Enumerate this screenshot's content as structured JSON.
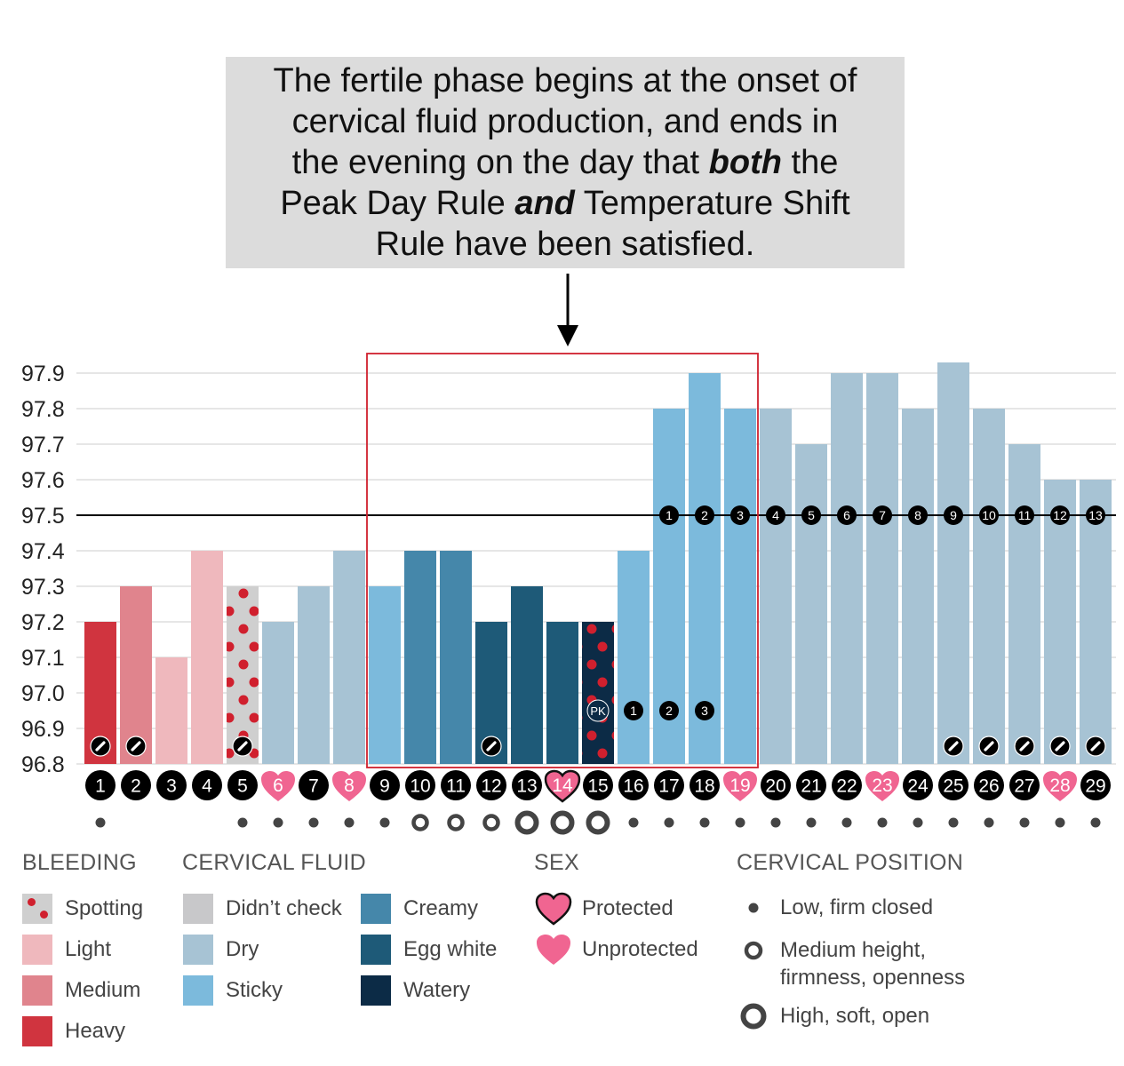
{
  "callout": {
    "line1": "The fertile phase begins at the onset of",
    "line2": "cervical fluid production, and ends in",
    "line3_pre": "the evening on the day that ",
    "line3_em": "both",
    "line3_post": " the",
    "line4_pre": "Peak Day Rule ",
    "line4_em": "and",
    "line4_post": " Temperature Shift",
    "line5": "Rule have been satisfied."
  },
  "colors": {
    "heavy": "#d0343f",
    "medium": "#e0848d",
    "light": "#efb8bd",
    "spotting_bg": "#cfcfcf",
    "spot_dot": "#d0202e",
    "didnt_check": "#c8c8ca",
    "dry": "#a7c3d4",
    "sticky": "#7cbadc",
    "creamy": "#4587aa",
    "eggwhite": "#1e5a78",
    "watery": "#0c2b46",
    "heart": "#f06591",
    "box": "#d0202e",
    "grid": "#dddddd"
  },
  "chart_data": {
    "type": "bar",
    "title": "",
    "xlabel": "",
    "ylabel": "",
    "ylim": [
      96.8,
      97.9
    ],
    "yticks": [
      "97.9",
      "97.8",
      "97.7",
      "97.6",
      "97.5",
      "97.4",
      "97.3",
      "97.2",
      "97.1",
      "97.0",
      "96.9",
      "96.8"
    ],
    "coverline": 97.5,
    "fertile_window_days": [
      9,
      19
    ],
    "days": [
      {
        "day": "1",
        "temp": 97.2,
        "kind": "heavy",
        "sex": "none",
        "cp": "low",
        "edit": true,
        "marker": ""
      },
      {
        "day": "2",
        "temp": 97.3,
        "kind": "medium",
        "sex": "none",
        "cp": "none",
        "edit": true,
        "marker": ""
      },
      {
        "day": "3",
        "temp": 97.1,
        "kind": "light",
        "sex": "none",
        "cp": "none",
        "edit": false,
        "marker": ""
      },
      {
        "day": "4",
        "temp": 97.4,
        "kind": "light",
        "sex": "none",
        "cp": "none",
        "edit": false,
        "marker": ""
      },
      {
        "day": "5",
        "temp": 97.3,
        "kind": "spotting",
        "sex": "none",
        "cp": "low",
        "edit": true,
        "marker": ""
      },
      {
        "day": "6",
        "temp": 97.2,
        "kind": "dry",
        "sex": "unprotected",
        "cp": "low",
        "edit": false,
        "marker": ""
      },
      {
        "day": "7",
        "temp": 97.3,
        "kind": "dry",
        "sex": "none",
        "cp": "low",
        "edit": false,
        "marker": ""
      },
      {
        "day": "8",
        "temp": 97.4,
        "kind": "dry",
        "sex": "unprotected",
        "cp": "low",
        "edit": false,
        "marker": ""
      },
      {
        "day": "9",
        "temp": 97.3,
        "kind": "sticky",
        "sex": "none",
        "cp": "low",
        "edit": false,
        "marker": ""
      },
      {
        "day": "10",
        "temp": 97.4,
        "kind": "creamy",
        "sex": "none",
        "cp": "medium",
        "edit": false,
        "marker": ""
      },
      {
        "day": "11",
        "temp": 97.4,
        "kind": "creamy",
        "sex": "none",
        "cp": "medium",
        "edit": false,
        "marker": ""
      },
      {
        "day": "12",
        "temp": 97.2,
        "kind": "eggwhite",
        "sex": "none",
        "cp": "medium",
        "edit": true,
        "marker": ""
      },
      {
        "day": "13",
        "temp": 97.3,
        "kind": "eggwhite",
        "sex": "none",
        "cp": "high",
        "edit": false,
        "marker": ""
      },
      {
        "day": "14",
        "temp": 97.2,
        "kind": "eggwhite",
        "sex": "protected",
        "cp": "high",
        "edit": false,
        "marker": ""
      },
      {
        "day": "15",
        "temp": 97.2,
        "kind": "watery_spot",
        "sex": "none",
        "cp": "high",
        "edit": false,
        "marker": "PK"
      },
      {
        "day": "16",
        "temp": 97.4,
        "kind": "sticky",
        "sex": "none",
        "cp": "low",
        "edit": false,
        "marker": "1"
      },
      {
        "day": "17",
        "temp": 97.8,
        "kind": "sticky",
        "sex": "none",
        "cp": "low",
        "edit": false,
        "marker": "2",
        "shift": "1"
      },
      {
        "day": "18",
        "temp": 97.9,
        "kind": "sticky",
        "sex": "none",
        "cp": "low",
        "edit": false,
        "marker": "3",
        "shift": "2"
      },
      {
        "day": "19",
        "temp": 97.8,
        "kind": "sticky",
        "sex": "unprotected",
        "cp": "low",
        "edit": false,
        "marker": "",
        "shift": "3"
      },
      {
        "day": "20",
        "temp": 97.8,
        "kind": "dry",
        "sex": "none",
        "cp": "low",
        "edit": false,
        "marker": "",
        "shift": "4"
      },
      {
        "day": "21",
        "temp": 97.7,
        "kind": "dry",
        "sex": "none",
        "cp": "low",
        "edit": false,
        "marker": "",
        "shift": "5"
      },
      {
        "day": "22",
        "temp": 97.9,
        "kind": "dry",
        "sex": "none",
        "cp": "low",
        "edit": false,
        "marker": "",
        "shift": "6"
      },
      {
        "day": "23",
        "temp": 97.9,
        "kind": "dry",
        "sex": "unprotected",
        "cp": "low",
        "edit": false,
        "marker": "",
        "shift": "7"
      },
      {
        "day": "24",
        "temp": 97.8,
        "kind": "dry",
        "sex": "none",
        "cp": "low",
        "edit": false,
        "marker": "",
        "shift": "8"
      },
      {
        "day": "25",
        "temp": 97.93,
        "kind": "dry",
        "sex": "none",
        "cp": "low",
        "edit": true,
        "marker": "",
        "shift": "9"
      },
      {
        "day": "26",
        "temp": 97.8,
        "kind": "dry",
        "sex": "none",
        "cp": "low",
        "edit": true,
        "marker": "",
        "shift": "10"
      },
      {
        "day": "27",
        "temp": 97.7,
        "kind": "dry",
        "sex": "none",
        "cp": "low",
        "edit": true,
        "marker": "",
        "shift": "11"
      },
      {
        "day": "28",
        "temp": 97.6,
        "kind": "dry",
        "sex": "unprotected",
        "cp": "low",
        "edit": true,
        "marker": "",
        "shift": "12"
      },
      {
        "day": "29",
        "temp": 97.6,
        "kind": "dry",
        "sex": "none",
        "cp": "low",
        "edit": true,
        "marker": "",
        "shift": "13"
      }
    ]
  },
  "legend": {
    "bleeding": {
      "title": "BLEEDING",
      "spotting": "Spotting",
      "light": "Light",
      "medium": "Medium",
      "heavy": "Heavy"
    },
    "fluid": {
      "title": "CERVICAL FLUID",
      "didnt_check": "Didn’t check",
      "dry": "Dry",
      "sticky": "Sticky",
      "creamy": "Creamy",
      "eggwhite": "Egg white",
      "watery": "Watery"
    },
    "sex": {
      "title": "SEX",
      "protected": "Protected",
      "unprotected": "Unprotected"
    },
    "position": {
      "title": "CERVICAL POSITION",
      "low": "Low, firm closed",
      "medium_line1": "Medium height,",
      "medium_line2": "firmness, openness",
      "high": "High, soft, open"
    }
  }
}
